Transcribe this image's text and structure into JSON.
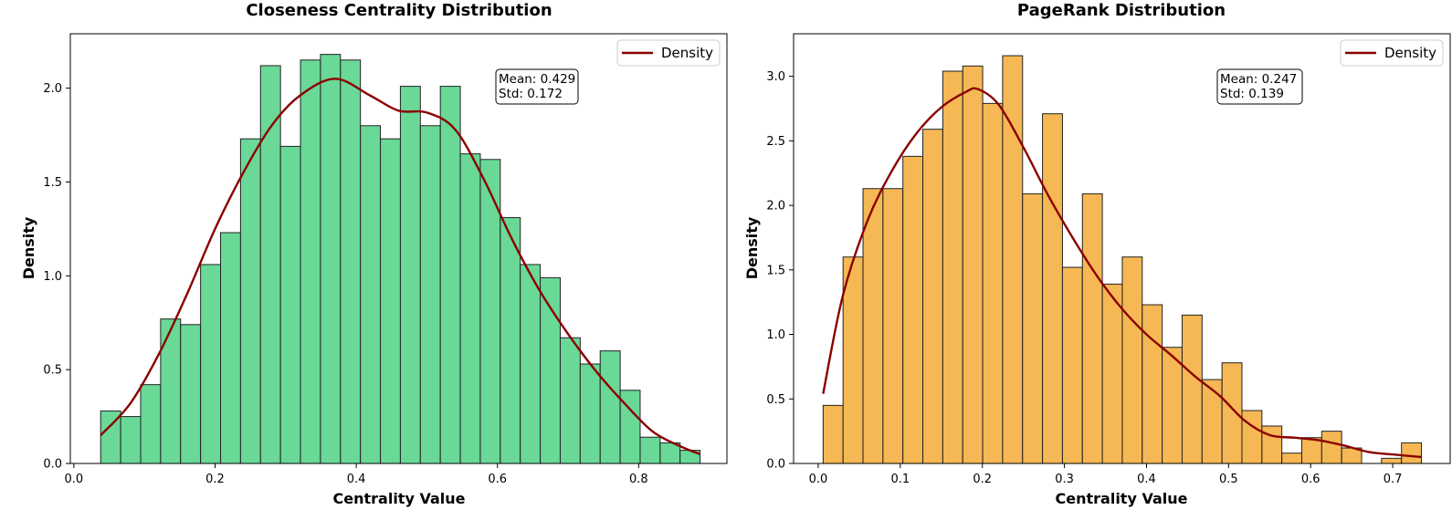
{
  "chart_data": [
    {
      "type": "bar",
      "title": "Closeness Centrality Distribution",
      "xlabel": "Centrality Value",
      "ylabel": "Density",
      "xlim": [
        -0.005,
        0.925
      ],
      "ylim": [
        0,
        2.29
      ],
      "xticks": [
        0.0,
        0.2,
        0.4,
        0.6,
        0.8
      ],
      "xtick_labels": [
        "0.0",
        "0.2",
        "0.4",
        "0.6",
        "0.8"
      ],
      "yticks": [
        0.0,
        0.5,
        1.0,
        1.5,
        2.0
      ],
      "ytick_labels": [
        "0.0",
        "0.5",
        "1.0",
        "1.5",
        "2.0"
      ],
      "bin_start": 0.038,
      "bin_width": 0.0283,
      "values": [
        0.28,
        0.25,
        0.42,
        0.77,
        0.74,
        1.06,
        1.23,
        1.73,
        2.12,
        1.69,
        2.15,
        2.18,
        2.15,
        1.8,
        1.73,
        2.01,
        1.8,
        2.01,
        1.65,
        1.62,
        1.31,
        1.06,
        0.99,
        0.67,
        0.53,
        0.6,
        0.39,
        0.14,
        0.11,
        0.07
      ],
      "bar_color": "#6ad897",
      "density_line": {
        "name": "Density",
        "color": "#8b0000",
        "x": [
          0.038,
          0.08,
          0.12,
          0.16,
          0.2,
          0.24,
          0.28,
          0.32,
          0.37,
          0.42,
          0.46,
          0.5,
          0.54,
          0.58,
          0.62,
          0.66,
          0.7,
          0.74,
          0.78,
          0.82,
          0.86,
          0.887
        ],
        "y": [
          0.15,
          0.32,
          0.58,
          0.9,
          1.25,
          1.55,
          1.8,
          1.96,
          2.05,
          1.96,
          1.88,
          1.87,
          1.78,
          1.52,
          1.2,
          0.92,
          0.69,
          0.49,
          0.32,
          0.17,
          0.09,
          0.05
        ]
      },
      "legend": {
        "position": "upper right",
        "label": "Density"
      },
      "stats": {
        "mean": "Mean: 0.429",
        "std": "Std: 0.172"
      },
      "grid": false
    },
    {
      "type": "bar",
      "title": "PageRank Distribution",
      "xlabel": "Centrality Value",
      "ylabel": "Density",
      "xlim": [
        -0.03,
        0.77
      ],
      "ylim": [
        0,
        3.33
      ],
      "xticks": [
        0.0,
        0.1,
        0.2,
        0.3,
        0.4,
        0.5,
        0.6,
        0.7
      ],
      "xtick_labels": [
        "0.0",
        "0.1",
        "0.2",
        "0.3",
        "0.4",
        "0.5",
        "0.6",
        "0.7"
      ],
      "yticks": [
        0.0,
        0.5,
        1.0,
        1.5,
        2.0,
        2.5,
        3.0
      ],
      "ytick_labels": [
        "0.0",
        "0.5",
        "1.0",
        "1.5",
        "2.0",
        "2.5",
        "3.0"
      ],
      "bin_start": 0.006,
      "bin_width": 0.0243,
      "values": [
        0.45,
        1.6,
        2.13,
        2.13,
        2.38,
        2.59,
        3.04,
        3.08,
        2.79,
        3.16,
        2.09,
        2.71,
        1.52,
        2.09,
        1.39,
        1.6,
        1.23,
        0.9,
        1.15,
        0.65,
        0.78,
        0.41,
        0.29,
        0.08,
        0.2,
        0.25,
        0.12,
        0.0,
        0.04,
        0.16
      ],
      "bar_color": "#f5b854",
      "density_line": {
        "name": "Density",
        "color": "#8b0000",
        "x": [
          0.006,
          0.03,
          0.06,
          0.09,
          0.12,
          0.15,
          0.18,
          0.195,
          0.22,
          0.25,
          0.28,
          0.31,
          0.34,
          0.37,
          0.4,
          0.43,
          0.46,
          0.49,
          0.52,
          0.55,
          0.58,
          0.61,
          0.64,
          0.67,
          0.7,
          0.735
        ],
        "y": [
          0.54,
          1.3,
          1.88,
          2.27,
          2.56,
          2.76,
          2.88,
          2.9,
          2.78,
          2.45,
          2.08,
          1.75,
          1.45,
          1.2,
          1.0,
          0.84,
          0.67,
          0.52,
          0.33,
          0.22,
          0.2,
          0.18,
          0.14,
          0.09,
          0.07,
          0.05
        ]
      },
      "legend": {
        "position": "upper right",
        "label": "Density"
      },
      "stats": {
        "mean": "Mean: 0.247",
        "std": "Std: 0.139"
      },
      "grid": false
    }
  ]
}
